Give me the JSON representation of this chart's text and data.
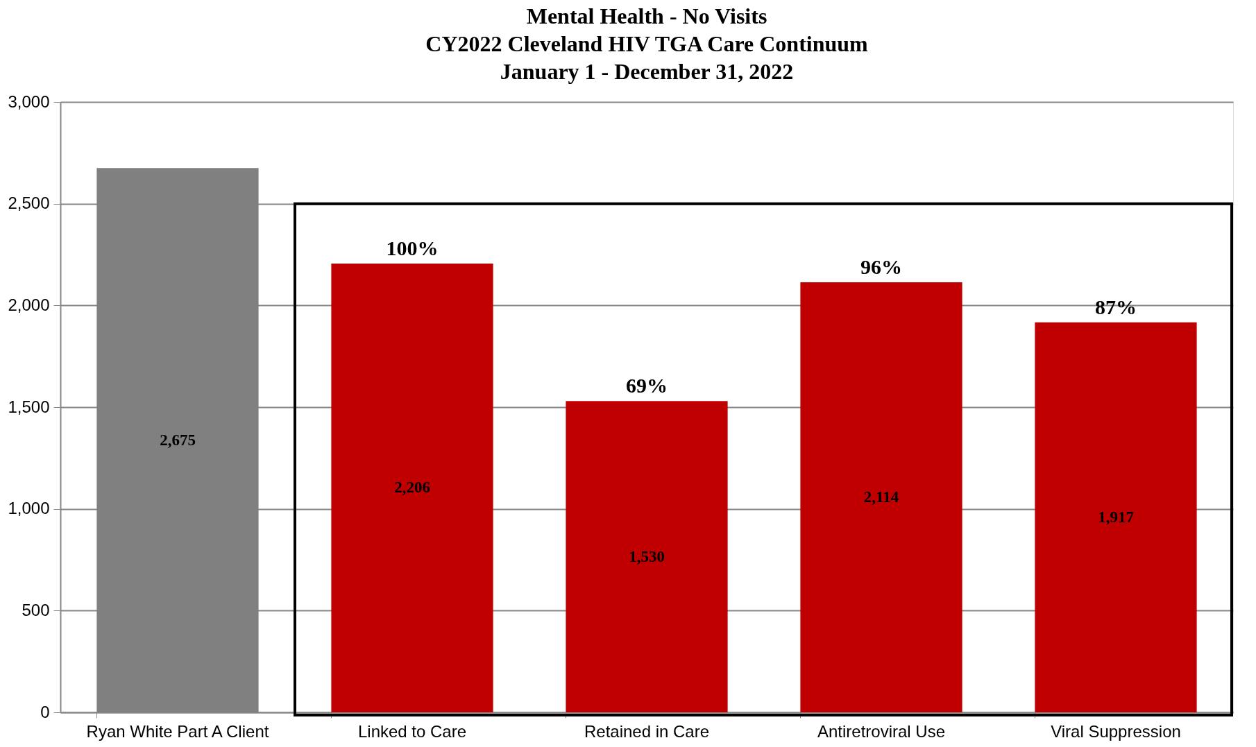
{
  "chart_data": {
    "type": "bar",
    "title": [
      "Mental Health - No Visits",
      "CY2022 Cleveland HIV TGA Care Continuum",
      "January 1 - December 31, 2022"
    ],
    "categories": [
      "Ryan White Part A Client",
      "Linked to Care",
      "Retained in Care",
      "Antiretroviral Use",
      "Viral Suppression"
    ],
    "values": [
      2675,
      2206,
      1530,
      2114,
      1917
    ],
    "colors": [
      "#808080",
      "#c00000",
      "#c00000",
      "#c00000",
      "#c00000"
    ],
    "value_labels": [
      "2,675",
      "2,206",
      "1,530",
      "2,114",
      "1,917"
    ],
    "annotations": [
      {
        "text": "100%",
        "x": "Linked to Care",
        "y": 2206
      },
      {
        "text": "69%",
        "x": "Retained in Care",
        "y": 1530
      },
      {
        "text": "96%",
        "x": "Antiretroviral Use",
        "y": 2114
      },
      {
        "text": "87%",
        "x": "Viral Suppression",
        "y": 1917
      }
    ],
    "ylim": [
      0,
      3000
    ],
    "yticks": [
      0,
      500,
      {
        "value": 1000,
        "label": "1,000"
      },
      {
        "value": 1500,
        "label": "1,500"
      },
      {
        "value": 2000,
        "label": "2,000"
      },
      {
        "value": 2500,
        "label": "2,500"
      },
      {
        "value": 3000,
        "label": "3,000"
      }
    ],
    "grid": "y"
  }
}
